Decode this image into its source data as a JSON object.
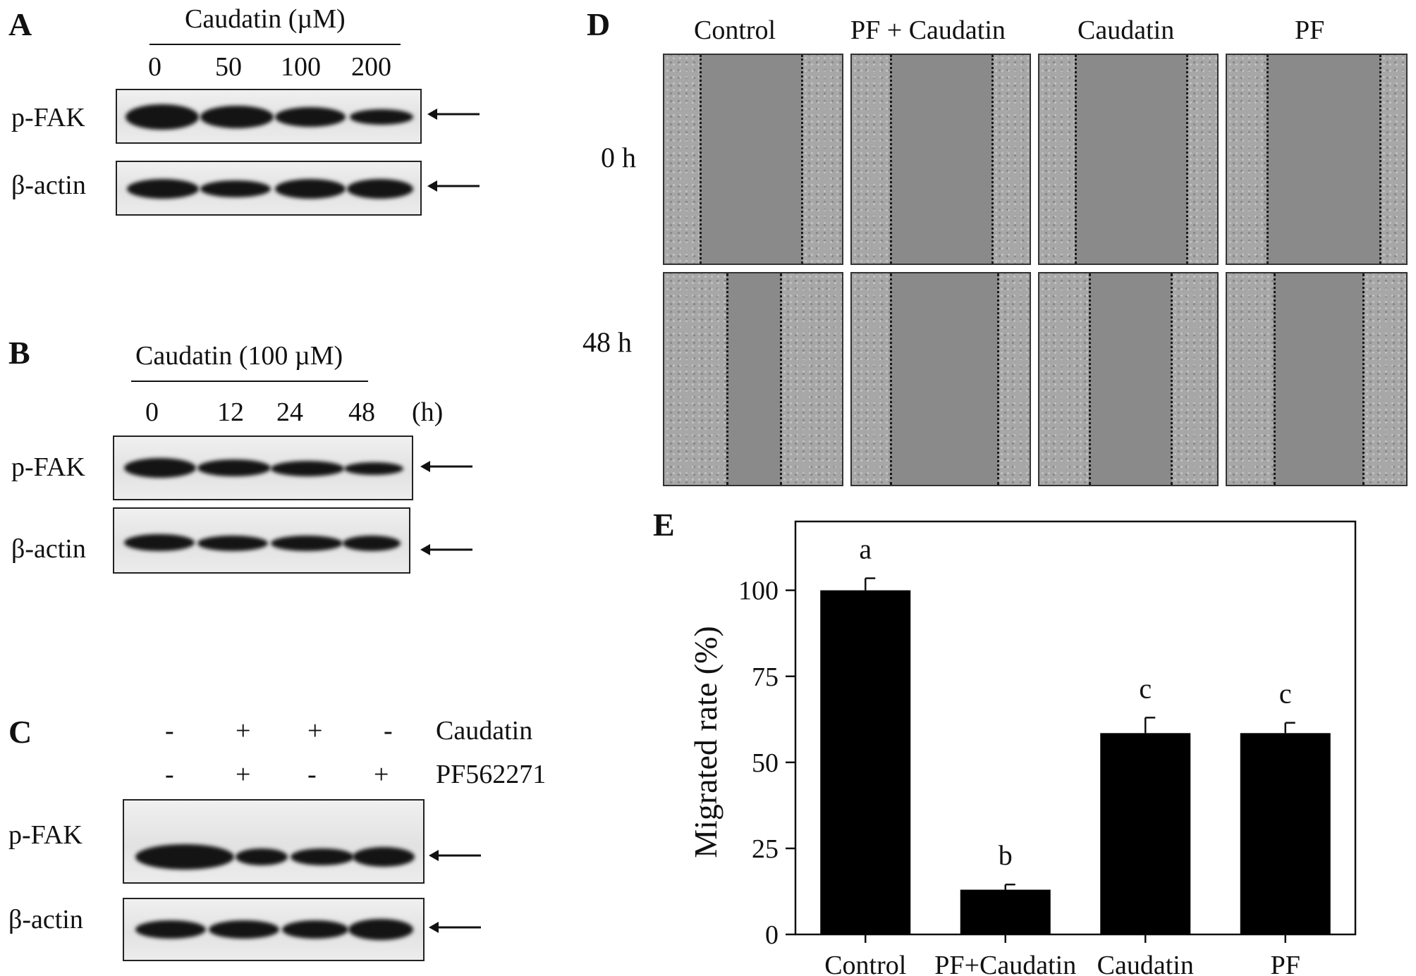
{
  "panelA": {
    "letter": "A",
    "treatment": "Caudatin (µM)",
    "lanes": [
      "0",
      "50",
      "100",
      "200"
    ],
    "rows": [
      "p-FAK",
      "β-actin"
    ]
  },
  "panelB": {
    "letter": "B",
    "treatment": "Caudatin (100 µM)",
    "lanes": [
      "0",
      "12",
      "24",
      "48"
    ],
    "unit": "(h)",
    "rows": [
      "p-FAK",
      "β-actin"
    ]
  },
  "panelC": {
    "letter": "C",
    "caudatin_row": [
      "-",
      "+",
      "+",
      "-"
    ],
    "pf_row": [
      "-",
      "+",
      "-",
      "+"
    ],
    "caudatin_label": "Caudatin",
    "pf_label": "PF562271",
    "rows": [
      "p-FAK",
      "β-actin"
    ]
  },
  "panelD": {
    "letter": "D",
    "columns": [
      "Control",
      "PF + Caudatin",
      "Caudatin",
      "PF"
    ],
    "times": [
      "0 h",
      "48 h"
    ]
  },
  "chart_data": {
    "type": "bar",
    "panel_letter": "E",
    "categories": [
      "Control",
      "PF+Caudatin",
      "Caudatin",
      "PF"
    ],
    "values": [
      100,
      13,
      58.5,
      58.5
    ],
    "errors": [
      3.5,
      1.5,
      4.5,
      3
    ],
    "significance": [
      "a",
      "b",
      "c",
      "c"
    ],
    "ylabel": "Migrated rate (%)",
    "ylim": [
      0,
      120
    ],
    "yticks": [
      0,
      25,
      50,
      75,
      100
    ],
    "bar_color": "#000000"
  }
}
